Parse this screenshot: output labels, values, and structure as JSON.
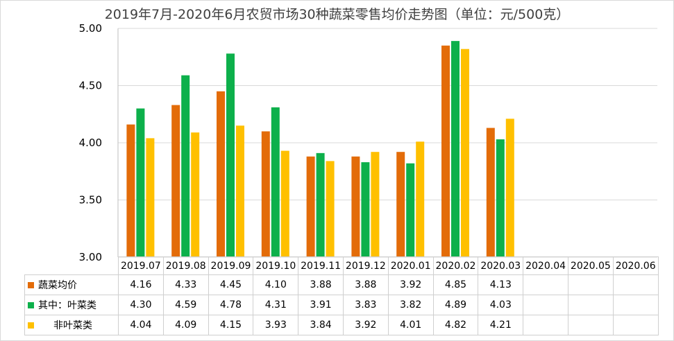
{
  "chart_data": {
    "type": "bar",
    "title": "2019年7月-2020年6月农贸市场30种蔬菜零售均价走势图（单位：元/500克）",
    "categories": [
      "2019.07",
      "2019.08",
      "2019.09",
      "2019.10",
      "2019.11",
      "2019.12",
      "2020.01",
      "2020.02",
      "2020.03",
      "2020.04",
      "2020.05",
      "2020.06"
    ],
    "ylim": [
      3.0,
      5.0
    ],
    "yticks": [
      "3.00",
      "3.50",
      "4.00",
      "4.50",
      "5.00"
    ],
    "grid": true,
    "legend_placement": "data-table",
    "series": [
      {
        "name": "蔬菜均价",
        "color": "#E36C09",
        "values": [
          4.16,
          4.33,
          4.45,
          4.1,
          3.88,
          3.88,
          3.92,
          4.85,
          4.13,
          null,
          null,
          null
        ],
        "labels": [
          "4.16",
          "4.33",
          "4.45",
          "4.10",
          "3.88",
          "3.88",
          "3.92",
          "4.85",
          "4.13",
          "",
          "",
          ""
        ]
      },
      {
        "name": "其中：叶菜类",
        "color": "#0DB04B",
        "values": [
          4.3,
          4.59,
          4.78,
          4.31,
          3.91,
          3.83,
          3.82,
          4.89,
          4.03,
          null,
          null,
          null
        ],
        "labels": [
          "4.30",
          "4.59",
          "4.78",
          "4.31",
          "3.91",
          "3.83",
          "3.82",
          "4.89",
          "4.03",
          "",
          "",
          ""
        ]
      },
      {
        "name": "非叶菜类",
        "color": "#FFC000",
        "values": [
          4.04,
          4.09,
          4.15,
          3.93,
          3.84,
          3.92,
          4.01,
          4.82,
          4.21,
          null,
          null,
          null
        ],
        "labels": [
          "4.04",
          "4.09",
          "4.15",
          "3.93",
          "3.84",
          "3.92",
          "4.01",
          "4.82",
          "4.21",
          "",
          "",
          ""
        ]
      }
    ]
  }
}
